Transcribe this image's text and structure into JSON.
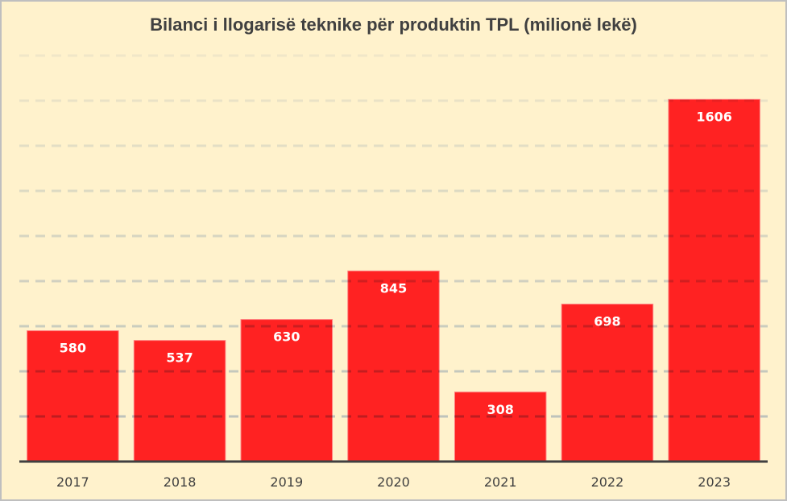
{
  "chart_data": {
    "type": "bar",
    "title": "Bilanci i llogarisë teknike për produktin TPL (milionë lekë)",
    "categories": [
      "2017",
      "2018",
      "2019",
      "2020",
      "2021",
      "2022",
      "2023"
    ],
    "values": [
      580,
      537,
      630,
      845,
      308,
      698,
      1606
    ],
    "value_labels": [
      "580",
      "537",
      "630",
      "845",
      "308",
      "698",
      "1606"
    ],
    "xlabel": "",
    "ylabel": "",
    "ylim": [
      0,
      1800
    ],
    "gridline_step": 200,
    "grid": true,
    "legend": "none",
    "colors": {
      "bar": "#ff2222",
      "background": "#fff2cc",
      "grid": "#b4c7e7",
      "axis": "#404040",
      "label": "#ffffff"
    }
  }
}
